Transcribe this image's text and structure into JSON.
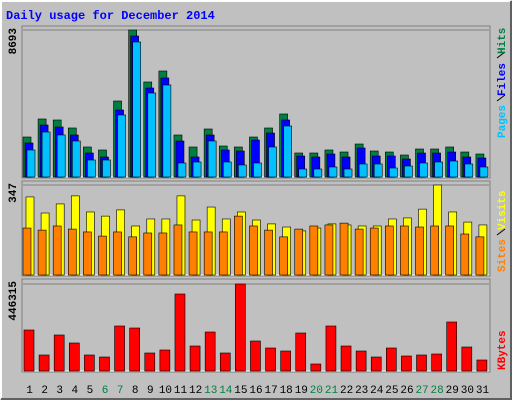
{
  "chart_data": [
    {
      "type": "bar",
      "title": "Daily usage for December 2014",
      "ylim": [
        0,
        8693
      ],
      "yticks": [
        8693
      ],
      "series": [
        {
          "name": "Hits",
          "color": "#008040",
          "values": [
            2365,
            3430,
            3371,
            2898,
            1774,
            1597,
            4494,
            8693,
            5618,
            6268,
            2484,
            1774,
            2839,
            1833,
            1774,
            2365,
            2898,
            3726,
            1419,
            1419,
            1597,
            1478,
            1951,
            1537,
            1478,
            1301,
            1656,
            1656,
            1774,
            1478,
            1360
          ]
        },
        {
          "name": "Files",
          "color": "#0000ff",
          "values": [
            2011,
            3075,
            2957,
            2484,
            1419,
            1183,
            3962,
            8338,
            5263,
            5855,
            2129,
            1183,
            2484,
            1597,
            1537,
            2188,
            2602,
            3371,
            1242,
            1183,
            1360,
            1183,
            1715,
            1242,
            1242,
            1064,
            1419,
            1419,
            1478,
            1183,
            1124
          ]
        },
        {
          "name": "Pages",
          "color": "#00c0ff",
          "values": [
            1597,
            2661,
            2484,
            2129,
            1005,
            1005,
            3667,
            7983,
            4967,
            5441,
            828,
            887,
            2129,
            887,
            710,
            828,
            1774,
            3016,
            473,
            473,
            591,
            473,
            769,
            769,
            532,
            650,
            828,
            887,
            946,
            769,
            591
          ]
        }
      ]
    },
    {
      "type": "bar",
      "ylim": [
        0,
        347
      ],
      "yticks": [
        347
      ],
      "series": [
        {
          "name": "Visits",
          "color": "#ffff00",
          "values": [
            301,
            239,
            274,
            305,
            243,
            227,
            251,
            189,
            216,
            216,
            305,
            212,
            262,
            216,
            243,
            212,
            197,
            185,
            170,
            181,
            197,
            193,
            189,
            189,
            216,
            220,
            254,
            347,
            243,
            204,
            193
          ]
        },
        {
          "name": "Sites",
          "color": "#ff8000",
          "values": [
            181,
            173,
            189,
            177,
            166,
            150,
            166,
            147,
            162,
            162,
            193,
            166,
            166,
            166,
            227,
            189,
            173,
            147,
            177,
            189,
            193,
            200,
            177,
            181,
            189,
            189,
            185,
            189,
            189,
            158,
            147
          ]
        }
      ]
    },
    {
      "type": "bar",
      "ylim": [
        0,
        446315
      ],
      "yticks": [
        446315
      ],
      "categories": [
        "1",
        "2",
        "3",
        "4",
        "5",
        "6",
        "7",
        "8",
        "9",
        "10",
        "11",
        "12",
        "13",
        "14",
        "15",
        "16",
        "17",
        "18",
        "19",
        "20",
        "21",
        "22",
        "23",
        "24",
        "25",
        "26",
        "27",
        "28",
        "29",
        "30",
        "31"
      ],
      "category_colors": [
        "#000000",
        "#000000",
        "#000000",
        "#000000",
        "#000000",
        "#008040",
        "#008040",
        "#000000",
        "#000000",
        "#000000",
        "#000000",
        "#000000",
        "#008040",
        "#008040",
        "#000000",
        "#000000",
        "#000000",
        "#000000",
        "#000000",
        "#008040",
        "#008040",
        "#000000",
        "#000000",
        "#000000",
        "#000000",
        "#000000",
        "#008040",
        "#008040",
        "#000000",
        "#000000",
        "#000000"
      ],
      "series": [
        {
          "name": "KBytes",
          "color": "#ff0000",
          "values": [
            210334,
            82081,
            184683,
            143642,
            82081,
            71821,
            230855,
            220594,
            92341,
            107731,
            395013,
            128251,
            200073,
            92341,
            446315,
            153902,
            117991,
            102601,
            194943,
            35911,
            230855,
            128251,
            102601,
            71821,
            117991,
            76951,
            82081,
            87211,
            251372,
            123121,
            56431
          ]
        }
      ]
    }
  ]
}
